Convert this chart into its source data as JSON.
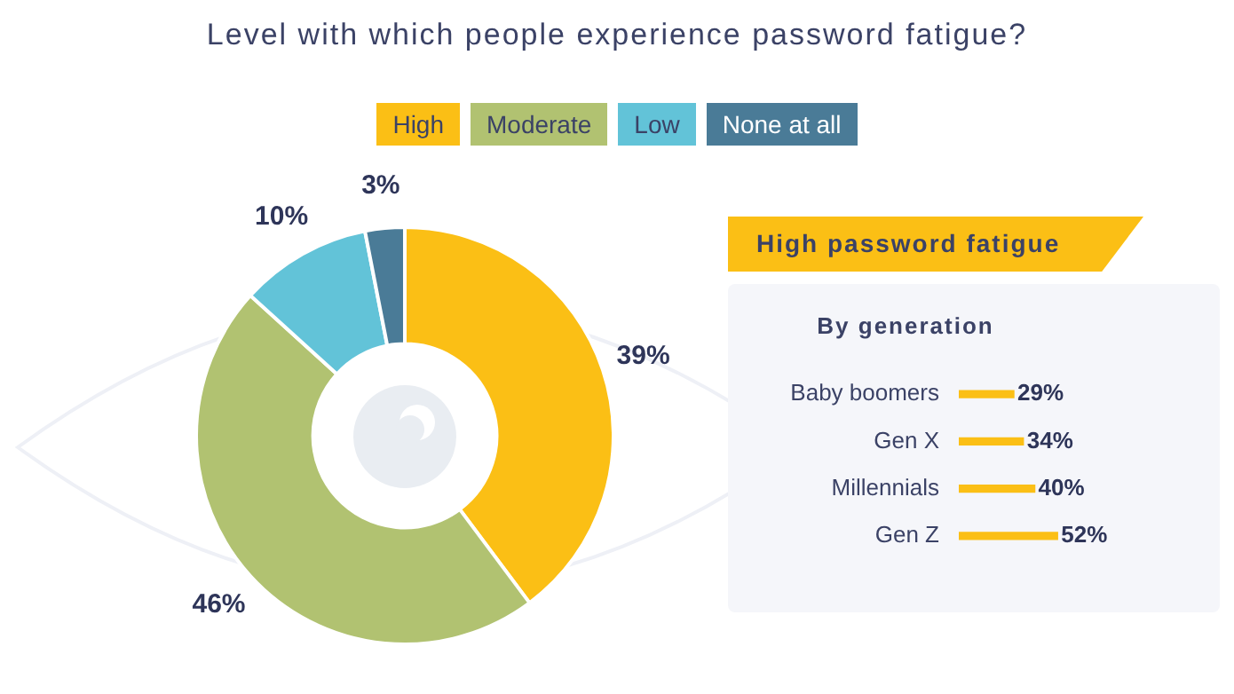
{
  "chart_data": [
    {
      "type": "donut",
      "title": "Level with which people experience password fatigue?",
      "categories": [
        "High",
        "Moderate",
        "Low",
        "None at all"
      ],
      "values": [
        39,
        46,
        10,
        3
      ],
      "colors": [
        "#fbbf15",
        "#b1c271",
        "#62c3d8",
        "#4a7b97"
      ],
      "value_labels": [
        "39%",
        "46%",
        "10%",
        "3%"
      ],
      "legend": "top"
    },
    {
      "type": "bar",
      "orientation": "horizontal",
      "title": "High password fatigue",
      "subtitle": "By generation",
      "categories": [
        "Baby boomers",
        "Gen X",
        "Millennials",
        "Gen Z"
      ],
      "values": [
        29,
        34,
        40,
        52
      ],
      "color": "#fbbf15",
      "value_labels": [
        "29%",
        "34%",
        "40%",
        "52%"
      ]
    }
  ]
}
